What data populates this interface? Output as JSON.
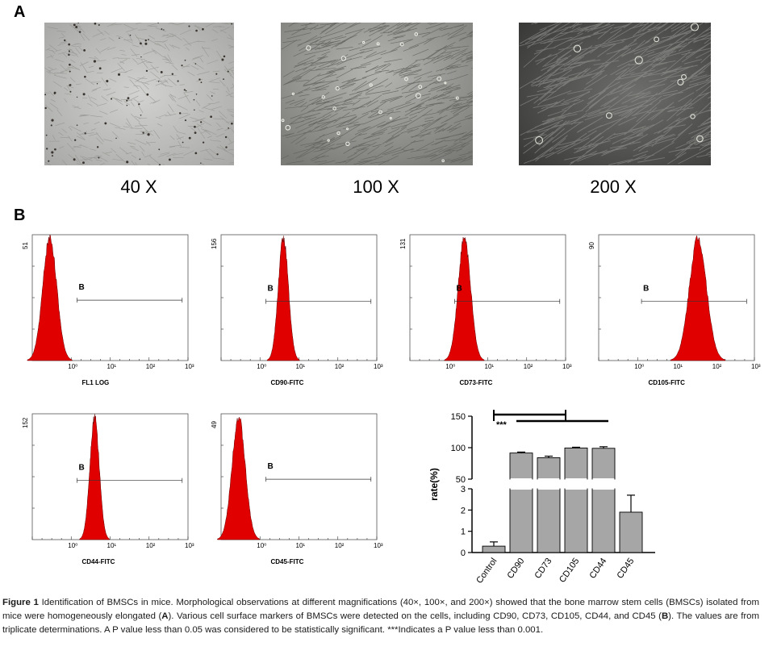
{
  "panelA": {
    "letter": "A",
    "images": [
      {
        "label": "40 X"
      },
      {
        "label": "100 X"
      },
      {
        "label": "200 X"
      }
    ]
  },
  "panelB": {
    "letter": "B",
    "histograms": [
      {
        "ymax": "51",
        "xlabel": "FL1 LOG",
        "gate": "B",
        "peak_center_decade": -0.55,
        "peak_width": 0.18
      },
      {
        "ymax": "156",
        "xlabel": "CD90-FITC",
        "gate": "B",
        "peak_center_decade": 0.6,
        "peak_width": 0.13
      },
      {
        "ymax": "131",
        "xlabel": "CD73-FITC",
        "gate": "B",
        "peak_center_decade": 0.4,
        "peak_width": 0.16
      },
      {
        "ymax": "90",
        "xlabel": "CD105-FITC",
        "gate": "B",
        "peak_center_decade": 1.55,
        "peak_width": 0.22
      },
      {
        "ymax": "152",
        "xlabel": "CD44-FITC",
        "gate": "B",
        "peak_center_decade": 0.6,
        "peak_width": 0.12
      },
      {
        "ymax": "49",
        "xlabel": "CD45-FITC",
        "gate": "B",
        "peak_center_decade": -0.55,
        "peak_width": 0.17
      }
    ],
    "tick_labels": [
      "10⁰",
      "10¹",
      "10²",
      "10³"
    ]
  },
  "chart_data": {
    "type": "bar",
    "categories": [
      "Control",
      "CD90",
      "CD73",
      "CD105",
      "CD44",
      "CD45"
    ],
    "values": [
      0.3,
      91.5,
      84,
      99.5,
      99,
      1.9
    ],
    "errors": [
      0.2,
      1.5,
      2.5,
      1.2,
      2.5,
      0.8
    ],
    "ylabel": "rate(%)",
    "y_axis_broken": true,
    "lower_range": [
      0,
      3
    ],
    "upper_range": [
      50,
      150
    ],
    "lower_ticks": [
      "0",
      "1",
      "2",
      "3"
    ],
    "upper_ticks": [
      "50",
      "100",
      "150"
    ],
    "significance": "***",
    "bar_color": "#a6a6a6"
  },
  "caption": {
    "figure_label": "Figure 1",
    "text_1": " Identification of BMSCs in mice. Morphological observations at different magnifications (40×, 100×, and 200×) showed that the bone marrow stem cells (BMSCs) isolated from mice were homogeneously elongated (",
    "bold_A": "A",
    "text_2": "). Various cell surface markers of BMSCs were detected on the cells, including CD90, CD73, CD105, CD44, and CD45 (",
    "bold_B": "B",
    "text_3": "). The values are from triplicate determinations. A P value less than 0.05 was considered to be statistically significant. ***Indicates a P value less than 0.001."
  }
}
